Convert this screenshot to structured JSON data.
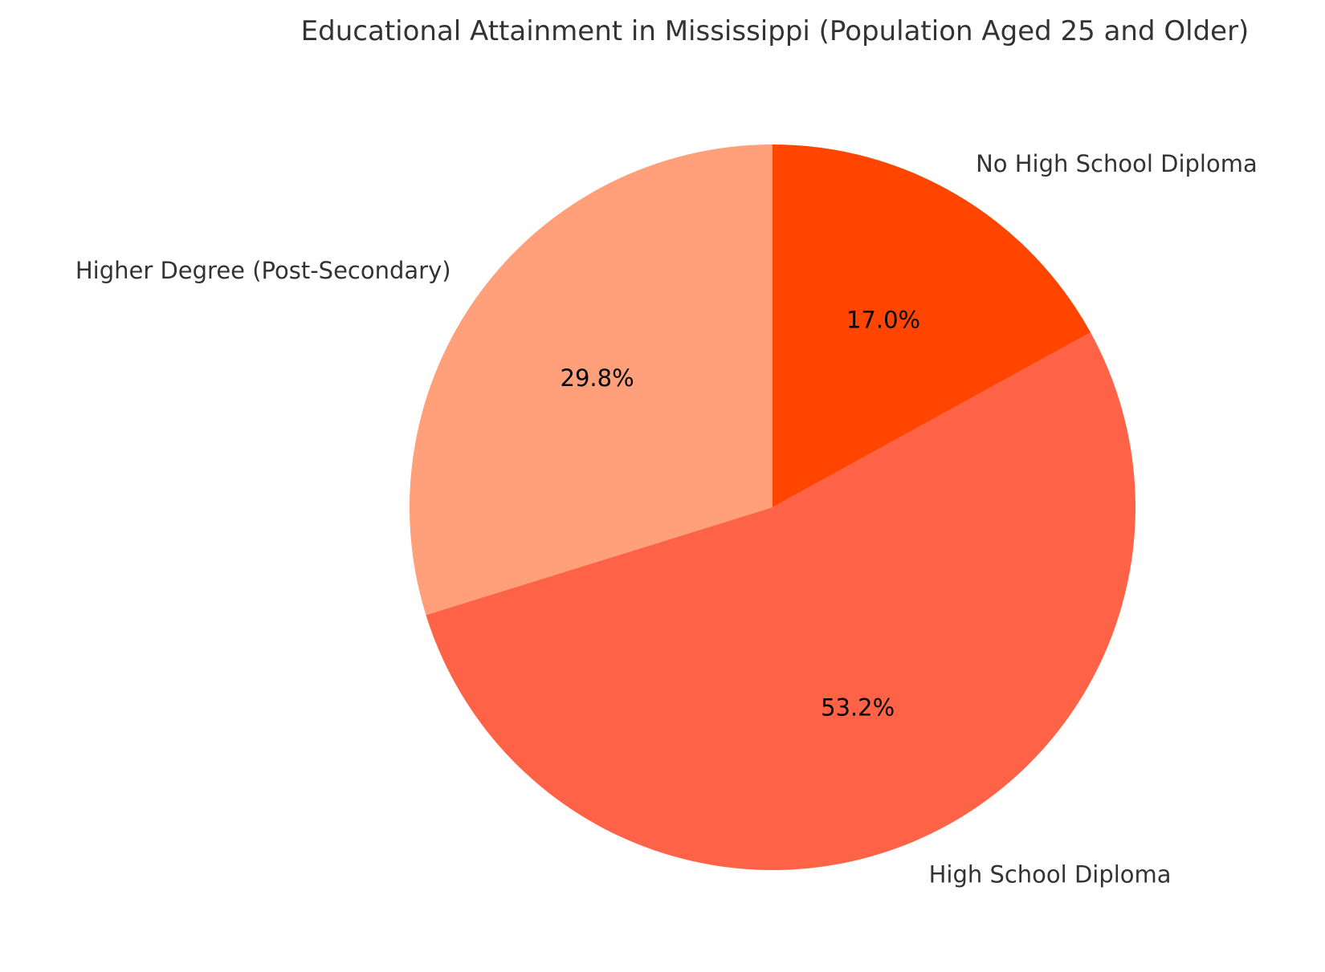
{
  "chart_data": {
    "type": "pie",
    "title": "Educational Attainment in Mississippi (Population Aged 25 and Older)",
    "start_angle_deg": 90,
    "direction": "clockwise",
    "slices": [
      {
        "label": "No High School Diploma",
        "value": 17.0,
        "pct_label": "17.0%",
        "color": "#ff4500"
      },
      {
        "label": "High School Diploma",
        "value": 53.2,
        "pct_label": "53.2%",
        "color": "#ff6347"
      },
      {
        "label": "Higher Degree (Post-Secondary)",
        "value": 29.8,
        "pct_label": "29.8%",
        "color": "#ffa07a"
      }
    ],
    "legend": "none"
  }
}
